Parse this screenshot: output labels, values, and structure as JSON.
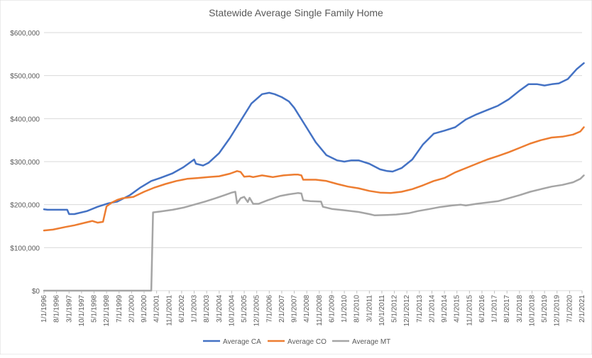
{
  "chart_data": {
    "type": "line",
    "title": "Statewide Average Single Family Home",
    "xlabel": "",
    "ylabel": "",
    "ylim": [
      0,
      600000
    ],
    "y_ticks": [
      {
        "value": 0,
        "label": "$0"
      },
      {
        "value": 100000,
        "label": "$100,000"
      },
      {
        "value": 200000,
        "label": "$200,000"
      },
      {
        "value": 300000,
        "label": "$300,000"
      },
      {
        "value": 400000,
        "label": "$400,000"
      },
      {
        "value": 500000,
        "label": "$500,000"
      },
      {
        "value": 600000,
        "label": "$600,000"
      }
    ],
    "x_tick_labels": [
      "1/1/1996",
      "8/1/1996",
      "3/1/1997",
      "10/1/1997",
      "5/1/1998",
      "12/1/1998",
      "7/1/1999",
      "2/1/2000",
      "9/1/2000",
      "4/1/2001",
      "11/1/2001",
      "6/1/2002",
      "1/1/2003",
      "8/1/2003",
      "3/1/2004",
      "10/1/2004",
      "5/1/2005",
      "12/1/2005",
      "7/1/2006",
      "2/1/2007",
      "9/1/2007",
      "4/1/2008",
      "11/1/2008",
      "6/1/2009",
      "1/1/2010",
      "8/1/2010",
      "3/1/2011",
      "10/1/2011",
      "5/1/2012",
      "12/1/2012",
      "7/1/2013",
      "2/1/2014",
      "9/1/2014",
      "4/1/2015",
      "11/1/2015",
      "6/1/2016",
      "1/1/2017",
      "8/1/2017",
      "3/1/2018",
      "10/1/2018",
      "5/1/2019",
      "12/1/2019",
      "7/1/2020",
      "2/1/2021"
    ],
    "grid": true,
    "legend_position": "bottom",
    "series": [
      {
        "name": "Average CA",
        "color": "#4472C4",
        "points": [
          [
            "1996-01",
            189000
          ],
          [
            "1996-03",
            188000
          ],
          [
            "1997-02",
            188000
          ],
          [
            "1997-03",
            178000
          ],
          [
            "1997-06",
            178000
          ],
          [
            "1998-01",
            185000
          ],
          [
            "1998-07",
            195000
          ],
          [
            "1999-01",
            203000
          ],
          [
            "1999-06",
            207000
          ],
          [
            "2000-01",
            222000
          ],
          [
            "2000-07",
            240000
          ],
          [
            "2001-01",
            255000
          ],
          [
            "2001-06",
            262000
          ],
          [
            "2002-01",
            273000
          ],
          [
            "2002-07",
            287000
          ],
          [
            "2003-01",
            305000
          ],
          [
            "2003-02",
            295000
          ],
          [
            "2003-06",
            291000
          ],
          [
            "2003-09",
            297000
          ],
          [
            "2004-03",
            320000
          ],
          [
            "2004-09",
            355000
          ],
          [
            "2005-03",
            395000
          ],
          [
            "2005-09",
            435000
          ],
          [
            "2006-03",
            457000
          ],
          [
            "2006-07",
            460000
          ],
          [
            "2006-10",
            457000
          ],
          [
            "2007-02",
            450000
          ],
          [
            "2007-06",
            440000
          ],
          [
            "2007-09",
            425000
          ],
          [
            "2008-03",
            385000
          ],
          [
            "2008-09",
            345000
          ],
          [
            "2009-03",
            315000
          ],
          [
            "2009-09",
            303000
          ],
          [
            "2010-01",
            300000
          ],
          [
            "2010-05",
            303000
          ],
          [
            "2010-09",
            303000
          ],
          [
            "2011-03",
            295000
          ],
          [
            "2011-09",
            282000
          ],
          [
            "2012-01",
            278000
          ],
          [
            "2012-04",
            277000
          ],
          [
            "2012-09",
            285000
          ],
          [
            "2013-03",
            305000
          ],
          [
            "2013-09",
            340000
          ],
          [
            "2014-03",
            365000
          ],
          [
            "2014-09",
            372000
          ],
          [
            "2015-03",
            380000
          ],
          [
            "2015-09",
            398000
          ],
          [
            "2016-03",
            410000
          ],
          [
            "2016-09",
            420000
          ],
          [
            "2017-03",
            430000
          ],
          [
            "2017-09",
            445000
          ],
          [
            "2018-03",
            465000
          ],
          [
            "2018-08",
            480000
          ],
          [
            "2019-01",
            480000
          ],
          [
            "2019-05",
            477000
          ],
          [
            "2019-09",
            480000
          ],
          [
            "2020-01",
            482000
          ],
          [
            "2020-06",
            492000
          ],
          [
            "2020-11",
            515000
          ],
          [
            "2021-03",
            529000
          ]
        ]
      },
      {
        "name": "Average CO",
        "color": "#ED7D31",
        "points": [
          [
            "1996-01",
            140000
          ],
          [
            "1996-06",
            142000
          ],
          [
            "1997-01",
            148000
          ],
          [
            "1997-06",
            152000
          ],
          [
            "1997-12",
            158000
          ],
          [
            "1998-04",
            162000
          ],
          [
            "1998-07",
            158000
          ],
          [
            "1998-10",
            160000
          ],
          [
            "1998-12",
            196000
          ],
          [
            "1999-03",
            205000
          ],
          [
            "1999-06",
            211000
          ],
          [
            "1999-09",
            215000
          ],
          [
            "2000-03",
            218000
          ],
          [
            "2000-09",
            230000
          ],
          [
            "2001-03",
            240000
          ],
          [
            "2001-09",
            248000
          ],
          [
            "2002-03",
            255000
          ],
          [
            "2002-09",
            260000
          ],
          [
            "2003-03",
            262000
          ],
          [
            "2003-09",
            264000
          ],
          [
            "2004-03",
            266000
          ],
          [
            "2004-09",
            272000
          ],
          [
            "2005-01",
            278000
          ],
          [
            "2005-03",
            276000
          ],
          [
            "2005-05",
            265000
          ],
          [
            "2005-08",
            266000
          ],
          [
            "2005-10",
            264000
          ],
          [
            "2006-03",
            268000
          ],
          [
            "2006-09",
            264000
          ],
          [
            "2007-03",
            268000
          ],
          [
            "2007-09",
            270000
          ],
          [
            "2007-11",
            270000
          ],
          [
            "2008-01",
            268000
          ],
          [
            "2008-02",
            258000
          ],
          [
            "2008-09",
            258000
          ],
          [
            "2009-03",
            255000
          ],
          [
            "2009-09",
            248000
          ],
          [
            "2010-03",
            242000
          ],
          [
            "2010-09",
            238000
          ],
          [
            "2011-03",
            232000
          ],
          [
            "2011-09",
            228000
          ],
          [
            "2012-03",
            227000
          ],
          [
            "2012-09",
            230000
          ],
          [
            "2013-03",
            236000
          ],
          [
            "2013-09",
            245000
          ],
          [
            "2014-03",
            255000
          ],
          [
            "2014-09",
            262000
          ],
          [
            "2015-03",
            275000
          ],
          [
            "2015-09",
            285000
          ],
          [
            "2016-03",
            295000
          ],
          [
            "2016-09",
            305000
          ],
          [
            "2017-03",
            313000
          ],
          [
            "2017-09",
            322000
          ],
          [
            "2018-03",
            332000
          ],
          [
            "2018-09",
            342000
          ],
          [
            "2019-03",
            350000
          ],
          [
            "2019-09",
            356000
          ],
          [
            "2020-03",
            358000
          ],
          [
            "2020-09",
            363000
          ],
          [
            "2021-01",
            370000
          ],
          [
            "2021-03",
            380000
          ]
        ]
      },
      {
        "name": "Average MT",
        "color": "#A5A5A5",
        "points": [
          [
            "1996-01",
            0
          ],
          [
            "2001-01",
            0
          ],
          [
            "2001-02",
            182000
          ],
          [
            "2001-06",
            184000
          ],
          [
            "2002-01",
            188000
          ],
          [
            "2002-07",
            193000
          ],
          [
            "2003-01",
            200000
          ],
          [
            "2003-07",
            207000
          ],
          [
            "2004-01",
            215000
          ],
          [
            "2004-06",
            222000
          ],
          [
            "2004-10",
            228000
          ],
          [
            "2004-12",
            230000
          ],
          [
            "2005-01",
            203000
          ],
          [
            "2005-03",
            215000
          ],
          [
            "2005-05",
            218000
          ],
          [
            "2005-07",
            206000
          ],
          [
            "2005-08",
            216000
          ],
          [
            "2005-10",
            202000
          ],
          [
            "2006-01",
            202000
          ],
          [
            "2006-06",
            210000
          ],
          [
            "2007-01",
            220000
          ],
          [
            "2007-06",
            224000
          ],
          [
            "2007-11",
            227000
          ],
          [
            "2008-01",
            226000
          ],
          [
            "2008-02",
            210000
          ],
          [
            "2008-06",
            208000
          ],
          [
            "2008-12",
            207000
          ],
          [
            "2009-01",
            195000
          ],
          [
            "2009-06",
            190000
          ],
          [
            "2010-01",
            187000
          ],
          [
            "2010-09",
            183000
          ],
          [
            "2011-03",
            178000
          ],
          [
            "2011-06",
            175000
          ],
          [
            "2012-01",
            176000
          ],
          [
            "2012-06",
            177000
          ],
          [
            "2013-01",
            180000
          ],
          [
            "2013-06",
            185000
          ],
          [
            "2014-01",
            190000
          ],
          [
            "2014-06",
            194000
          ],
          [
            "2015-01",
            198000
          ],
          [
            "2015-06",
            200000
          ],
          [
            "2015-09",
            198000
          ],
          [
            "2016-03",
            202000
          ],
          [
            "2016-09",
            205000
          ],
          [
            "2017-03",
            208000
          ],
          [
            "2017-09",
            215000
          ],
          [
            "2018-03",
            222000
          ],
          [
            "2018-09",
            230000
          ],
          [
            "2019-03",
            236000
          ],
          [
            "2019-09",
            242000
          ],
          [
            "2020-03",
            246000
          ],
          [
            "2020-09",
            252000
          ],
          [
            "2021-01",
            260000
          ],
          [
            "2021-03",
            268000
          ]
        ]
      }
    ]
  }
}
